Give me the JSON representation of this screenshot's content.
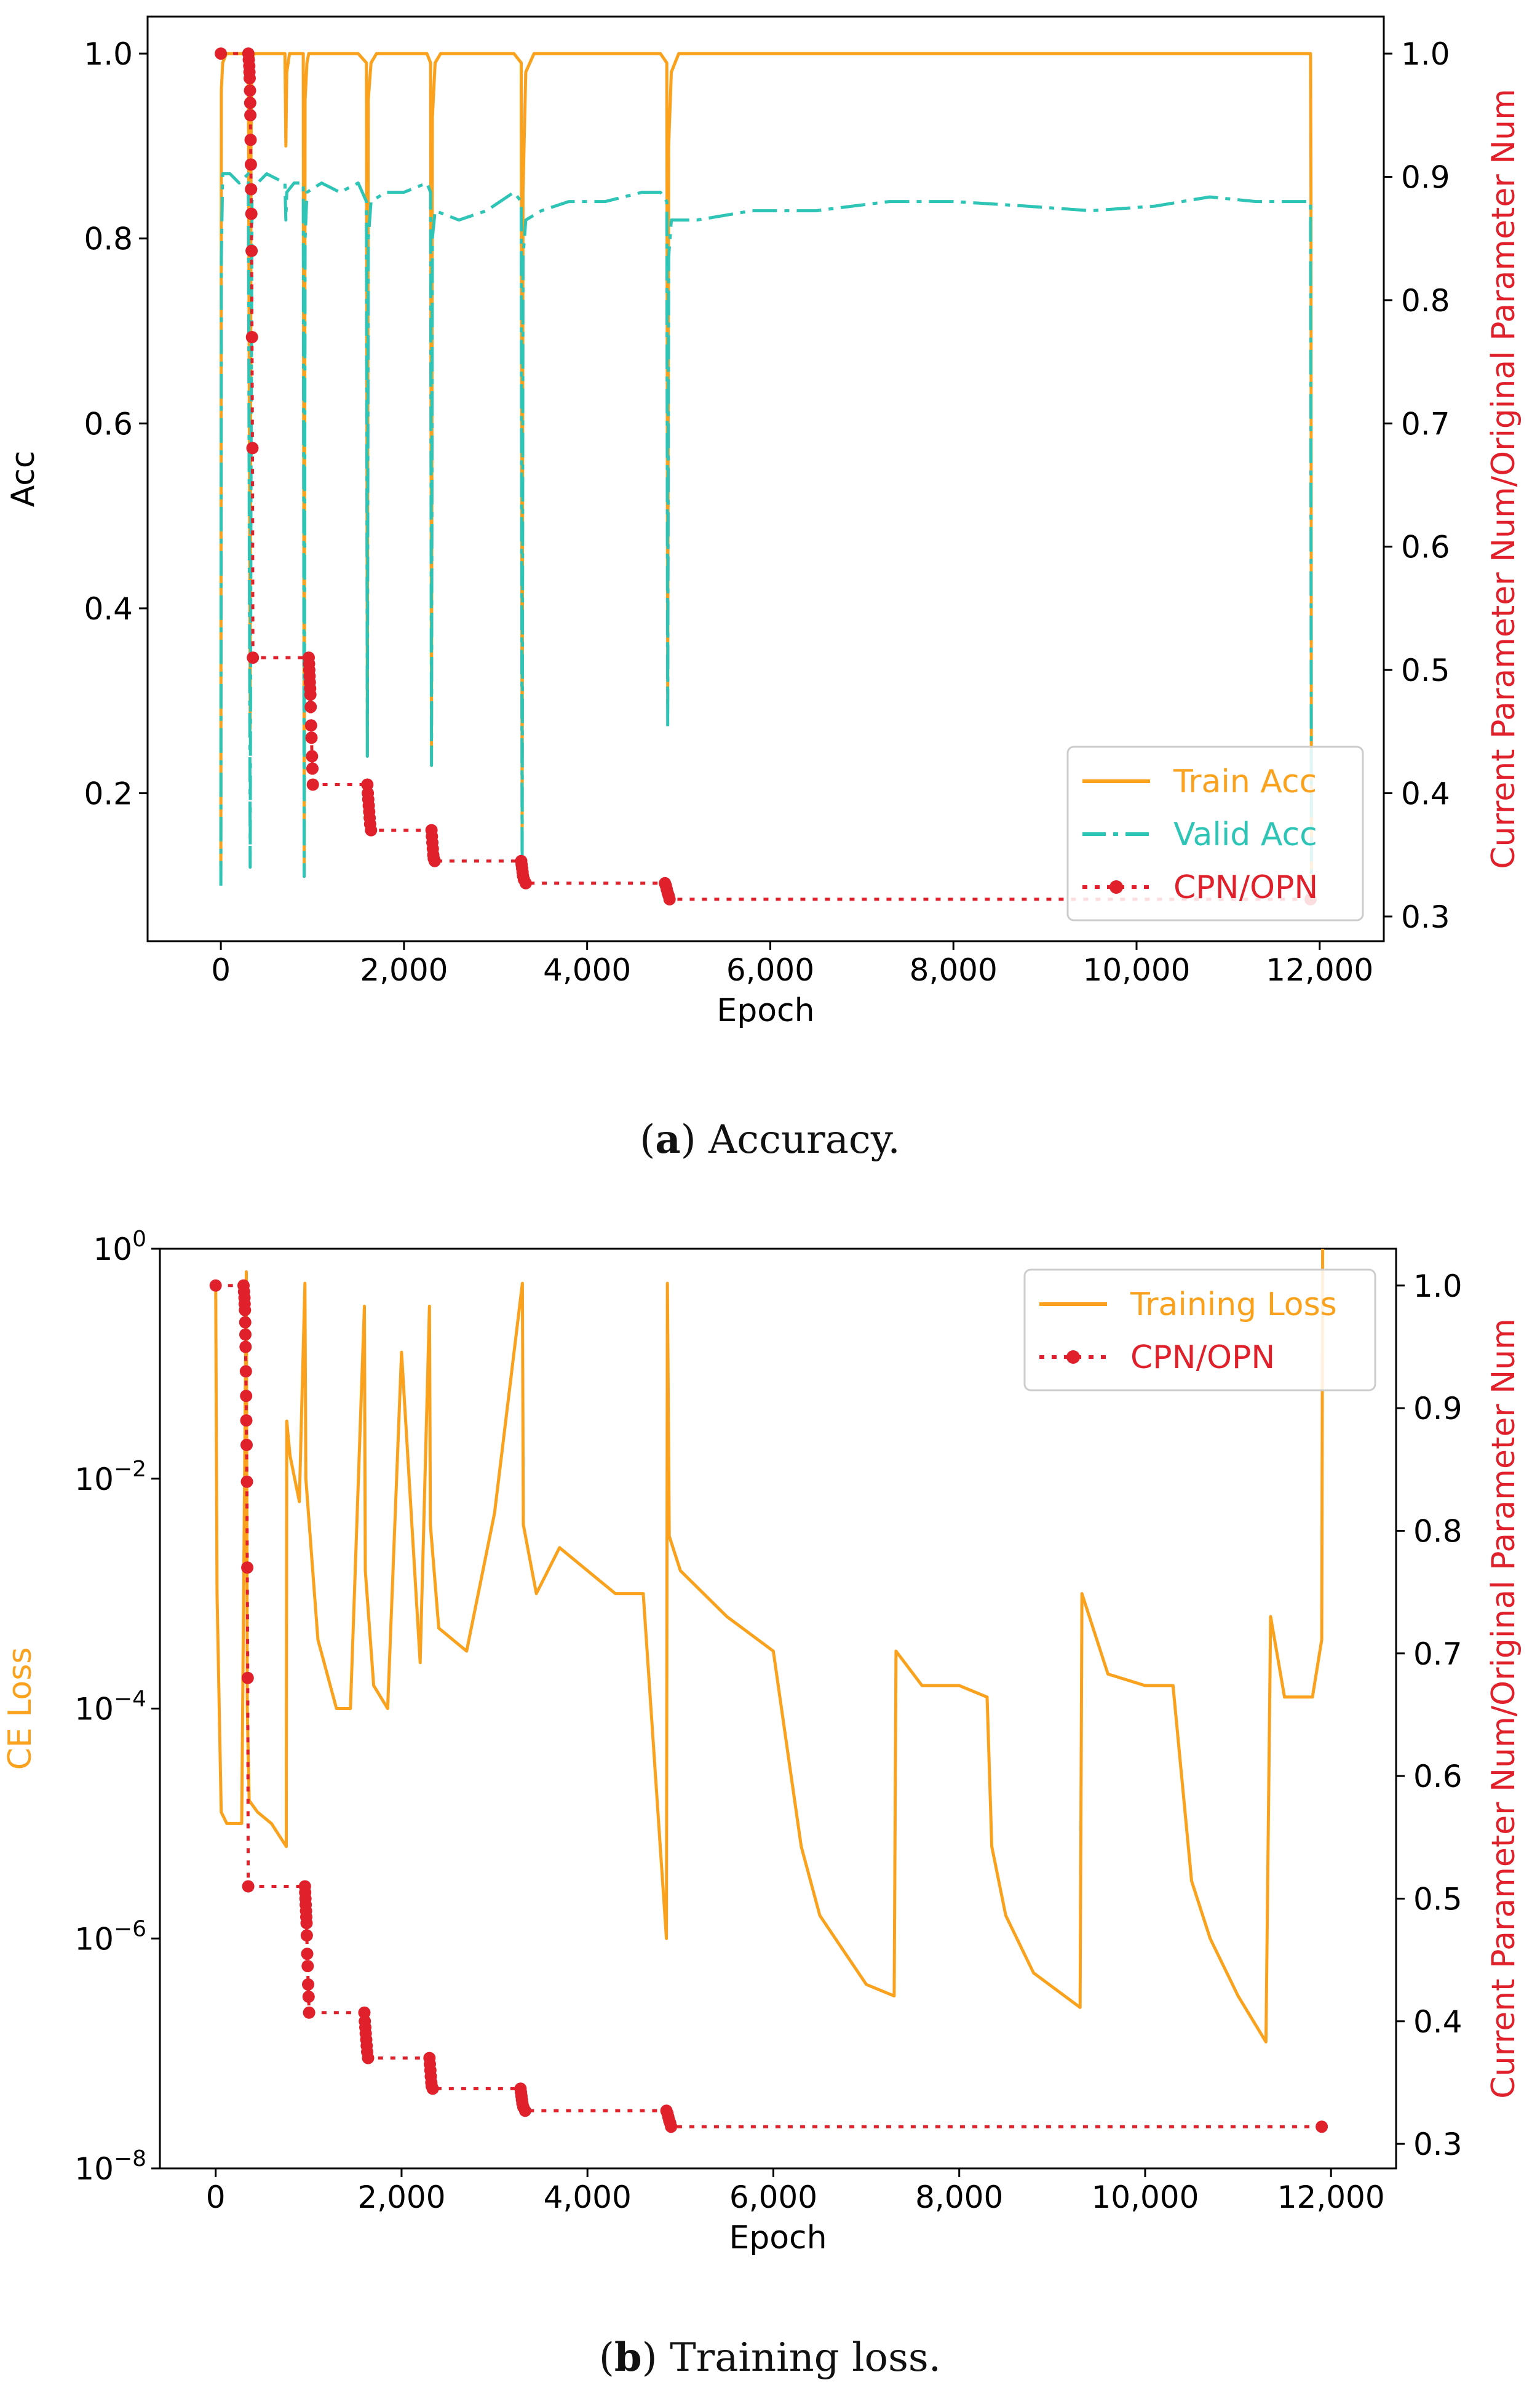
{
  "colors": {
    "train": "#FAA21D",
    "valid": "#2EC4B6",
    "cpn": "#E0202A",
    "axis": "#000000"
  },
  "captions": {
    "a": {
      "letter": "a",
      "text": ") Accuracy."
    },
    "b": {
      "letter": "b",
      "text": ") Training loss."
    }
  },
  "chart_data": [
    {
      "type": "line",
      "xlabel": "Epoch",
      "ylabel": "Acc",
      "y2label": "Current Parameter Num/Original Parameter Num",
      "xlim": [
        -800,
        12700
      ],
      "ylim": [
        0.04,
        1.04
      ],
      "y2lim": [
        0.28,
        1.03
      ],
      "xticks": [
        0,
        2000,
        4000,
        6000,
        8000,
        10000,
        12000
      ],
      "xtick_labels": [
        "0",
        "2,000",
        "4,000",
        "6,000",
        "8,000",
        "10,000",
        "12,000"
      ],
      "yticks": [
        0.2,
        0.4,
        0.6,
        0.8,
        1.0
      ],
      "ytick_labels": [
        "0.2",
        "0.4",
        "0.6",
        "0.8",
        "1.0"
      ],
      "y2ticks": [
        0.3,
        0.4,
        0.5,
        0.6,
        0.7,
        0.8,
        0.9,
        1.0
      ],
      "y2tick_labels": [
        "0.3",
        "0.4",
        "0.5",
        "0.6",
        "0.7",
        "0.8",
        "0.9",
        "1.0"
      ],
      "legend": {
        "position": "lower-right",
        "entries": [
          {
            "label": "Train Acc",
            "style": "solid",
            "color": "train"
          },
          {
            "label": "Valid Acc",
            "style": "dashdot",
            "color": "valid"
          },
          {
            "label": "CPN/OPN",
            "style": "dotted-marker",
            "color": "cpn"
          }
        ]
      },
      "series": [
        {
          "name": "Train Acc",
          "axis": "left",
          "x": [
            0,
            5,
            20,
            60,
            300,
            320,
            330,
            340,
            360,
            400,
            700,
            710,
            720,
            750,
            900,
            910,
            920,
            940,
            960,
            1000,
            1500,
            1590,
            1600,
            1610,
            1640,
            1700,
            2250,
            2290,
            2300,
            2310,
            2340,
            2400,
            3200,
            3280,
            3290,
            3300,
            3330,
            3420,
            4800,
            4870,
            4880,
            4890,
            4920,
            5000,
            11800,
            11900,
            11905,
            11910
          ],
          "y": [
            0.12,
            0.96,
            0.99,
            1.0,
            1.0,
            0.27,
            0.9,
            0.99,
            1.0,
            1.0,
            1.0,
            0.9,
            0.98,
            1.0,
            1.0,
            0.12,
            0.95,
            0.99,
            1.0,
            1.0,
            1.0,
            0.99,
            0.24,
            0.95,
            0.99,
            1.0,
            1.0,
            0.99,
            0.23,
            0.93,
            0.99,
            1.0,
            1.0,
            0.99,
            0.14,
            0.85,
            0.98,
            1.0,
            1.0,
            0.99,
            0.3,
            0.9,
            0.98,
            1.0,
            1.0,
            1.0,
            0.85,
            0.1
          ]
        },
        {
          "name": "Valid Acc",
          "axis": "left",
          "x": [
            0,
            5,
            20,
            100,
            200,
            300,
            320,
            330,
            340,
            400,
            500,
            700,
            710,
            720,
            800,
            900,
            910,
            920,
            940,
            1100,
            1300,
            1500,
            1590,
            1600,
            1610,
            1640,
            1800,
            2000,
            2250,
            2290,
            2300,
            2310,
            2340,
            2600,
            2900,
            3200,
            3280,
            3290,
            3300,
            3330,
            3500,
            3800,
            4200,
            4600,
            4800,
            4870,
            4880,
            4890,
            4920,
            5200,
            5800,
            6500,
            7300,
            8000,
            8800,
            9500,
            10200,
            10800,
            11300,
            11800,
            11900,
            11905,
            11910
          ],
          "y": [
            0.1,
            0.78,
            0.87,
            0.87,
            0.86,
            0.87,
            0.12,
            0.55,
            0.84,
            0.86,
            0.87,
            0.86,
            0.82,
            0.85,
            0.86,
            0.86,
            0.11,
            0.8,
            0.85,
            0.86,
            0.85,
            0.86,
            0.84,
            0.24,
            0.8,
            0.84,
            0.85,
            0.85,
            0.86,
            0.85,
            0.23,
            0.8,
            0.83,
            0.82,
            0.83,
            0.85,
            0.84,
            0.1,
            0.78,
            0.82,
            0.83,
            0.84,
            0.84,
            0.85,
            0.85,
            0.84,
            0.27,
            0.78,
            0.82,
            0.82,
            0.83,
            0.83,
            0.84,
            0.84,
            0.835,
            0.83,
            0.835,
            0.845,
            0.84,
            0.84,
            0.84,
            0.5,
            0.1
          ]
        },
        {
          "name": "CPN/OPN",
          "axis": "right",
          "x": [
            0,
            300,
            305,
            310,
            312,
            315,
            318,
            320,
            322,
            325,
            328,
            330,
            333,
            336,
            340,
            345,
            350,
            960,
            963,
            966,
            969,
            972,
            975,
            978,
            981,
            985,
            990,
            995,
            1000,
            1005,
            1600,
            1605,
            1610,
            1615,
            1620,
            1625,
            1630,
            1640,
            2300,
            2305,
            2310,
            2315,
            2320,
            2325,
            2335,
            3280,
            3285,
            3290,
            3295,
            3300,
            3310,
            3330,
            4850,
            4860,
            4870,
            4880,
            4890,
            4900,
            11900
          ],
          "y": [
            1.0,
            1.0,
            0.995,
            0.99,
            0.985,
            0.98,
            0.97,
            0.96,
            0.95,
            0.93,
            0.91,
            0.89,
            0.87,
            0.84,
            0.77,
            0.68,
            0.51,
            0.51,
            0.505,
            0.5,
            0.495,
            0.49,
            0.485,
            0.48,
            0.47,
            0.455,
            0.445,
            0.43,
            0.42,
            0.407,
            0.407,
            0.4,
            0.395,
            0.39,
            0.385,
            0.38,
            0.375,
            0.37,
            0.37,
            0.365,
            0.36,
            0.355,
            0.35,
            0.347,
            0.345,
            0.345,
            0.342,
            0.339,
            0.336,
            0.333,
            0.33,
            0.327,
            0.327,
            0.325,
            0.322,
            0.319,
            0.317,
            0.314,
            0.314
          ]
        }
      ]
    },
    {
      "type": "line",
      "xlabel": "Epoch",
      "ylabel": "CE Loss",
      "yscale": "log",
      "y2label": "Current Parameter Num/Original Parameter Num",
      "xlim": [
        -600,
        12700
      ],
      "ylim_log10": [
        -8,
        0
      ],
      "y2lim": [
        0.28,
        1.03
      ],
      "xticks": [
        0,
        2000,
        4000,
        6000,
        8000,
        10000,
        12000
      ],
      "xtick_labels": [
        "0",
        "2,000",
        "4,000",
        "6,000",
        "8,000",
        "10,000",
        "12,000"
      ],
      "yticks_log10": [
        -8,
        -6,
        -4,
        -2,
        0
      ],
      "ytick_base": "10",
      "ytick_exps": [
        "−8",
        "−6",
        "−4",
        "−2",
        "0"
      ],
      "y2ticks": [
        0.3,
        0.4,
        0.5,
        0.6,
        0.7,
        0.8,
        0.9,
        1.0
      ],
      "y2tick_labels": [
        "0.3",
        "0.4",
        "0.5",
        "0.6",
        "0.7",
        "0.8",
        "0.9",
        "1.0"
      ],
      "legend": {
        "position": "top-right",
        "entries": [
          {
            "label": "Training Loss",
            "style": "solid",
            "color": "train"
          },
          {
            "label": "CPN/OPN",
            "style": "dotted-marker",
            "color": "cpn"
          }
        ]
      },
      "series": [
        {
          "name": "Training Loss",
          "axis": "left",
          "y_is_log10": true,
          "x": [
            0,
            15,
            60,
            120,
            200,
            280,
            330,
            340,
            360,
            450,
            600,
            760,
            765,
            800,
            900,
            960,
            970,
            1100,
            1300,
            1450,
            1600,
            1610,
            1700,
            1850,
            2000,
            2200,
            2300,
            2310,
            2400,
            2700,
            3000,
            3300,
            3310,
            3450,
            3700,
            4000,
            4300,
            4600,
            4850,
            4860,
            4880,
            5000,
            5500,
            6000,
            6300,
            6500,
            7000,
            7300,
            7320,
            7600,
            8000,
            8300,
            8350,
            8500,
            8800,
            9300,
            9320,
            9600,
            10000,
            10300,
            10500,
            10700,
            11000,
            11300,
            11350,
            11500,
            11800,
            11900,
            11910
          ],
          "y": [
            -0.3,
            -3.0,
            -4.9,
            -5.0,
            -5.0,
            -5.0,
            -0.2,
            -4.0,
            -4.8,
            -4.9,
            -5.0,
            -5.2,
            -1.5,
            -1.8,
            -2.2,
            -0.3,
            -2.0,
            -3.4,
            -4.0,
            -4.0,
            -0.5,
            -2.8,
            -3.8,
            -4.0,
            -0.9,
            -3.6,
            -0.5,
            -2.4,
            -3.3,
            -3.5,
            -2.3,
            -0.3,
            -2.4,
            -3.0,
            -2.6,
            -2.8,
            -3.0,
            -3.0,
            -6.0,
            -0.3,
            -2.5,
            -2.8,
            -3.2,
            -3.5,
            -5.2,
            -5.8,
            -6.4,
            -6.5,
            -3.5,
            -3.8,
            -3.8,
            -3.9,
            -5.2,
            -5.8,
            -6.3,
            -6.6,
            -3.0,
            -3.7,
            -3.8,
            -3.8,
            -5.5,
            -6.0,
            -6.5,
            -6.9,
            -3.2,
            -3.9,
            -3.9,
            -3.4,
            0
          ]
        },
        {
          "name": "CPN/OPN",
          "axis": "right",
          "x": [
            0,
            300,
            305,
            310,
            312,
            315,
            318,
            320,
            322,
            325,
            328,
            330,
            333,
            336,
            340,
            345,
            350,
            960,
            963,
            966,
            969,
            972,
            975,
            978,
            981,
            985,
            990,
            995,
            1000,
            1005,
            1600,
            1605,
            1610,
            1615,
            1620,
            1625,
            1630,
            1640,
            2300,
            2305,
            2310,
            2315,
            2320,
            2325,
            2335,
            3280,
            3285,
            3290,
            3295,
            3300,
            3310,
            3330,
            4850,
            4860,
            4870,
            4880,
            4890,
            4900,
            11900
          ],
          "y": [
            1.0,
            1.0,
            0.995,
            0.99,
            0.985,
            0.98,
            0.97,
            0.96,
            0.95,
            0.93,
            0.91,
            0.89,
            0.87,
            0.84,
            0.77,
            0.68,
            0.51,
            0.51,
            0.505,
            0.5,
            0.495,
            0.49,
            0.485,
            0.48,
            0.47,
            0.455,
            0.445,
            0.43,
            0.42,
            0.407,
            0.407,
            0.4,
            0.395,
            0.39,
            0.385,
            0.38,
            0.375,
            0.37,
            0.37,
            0.365,
            0.36,
            0.355,
            0.35,
            0.347,
            0.345,
            0.345,
            0.342,
            0.339,
            0.336,
            0.333,
            0.33,
            0.327,
            0.327,
            0.325,
            0.322,
            0.319,
            0.317,
            0.314,
            0.314
          ]
        }
      ]
    }
  ]
}
